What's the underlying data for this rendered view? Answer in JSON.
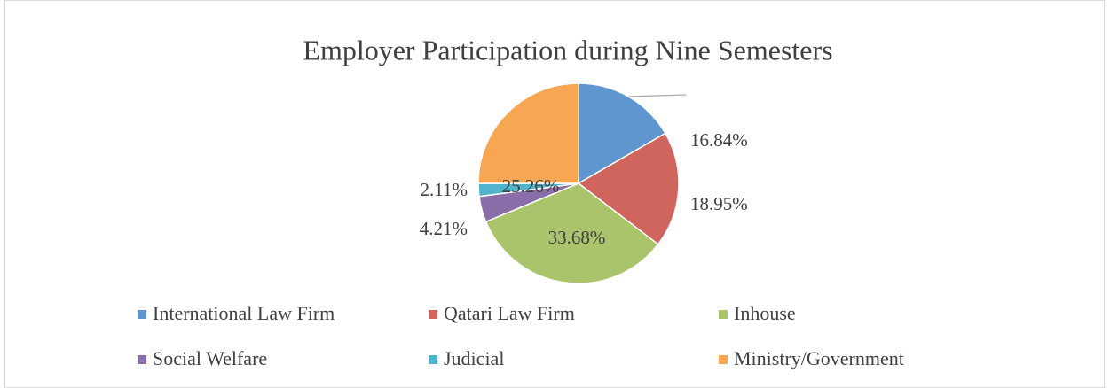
{
  "chart_data": {
    "type": "pie",
    "title": "Employer Participation during Nine Semesters",
    "categories": [
      "International Law Firm",
      "Qatari Law Firm",
      "Inhouse",
      "Social Welfare",
      "Judicial",
      "Ministry/Government"
    ],
    "values": [
      16.84,
      18.95,
      33.68,
      4.21,
      2.11,
      25.26
    ],
    "value_labels": [
      "16.84%",
      "18.95%",
      "33.68%",
      "4.21%",
      "2.11%",
      "25.26%"
    ],
    "colors": [
      "#6096cf",
      "#cf655d",
      "#a9c46b",
      "#8a6eaa",
      "#50b4cc",
      "#f7a652"
    ],
    "legend": "bottom"
  }
}
